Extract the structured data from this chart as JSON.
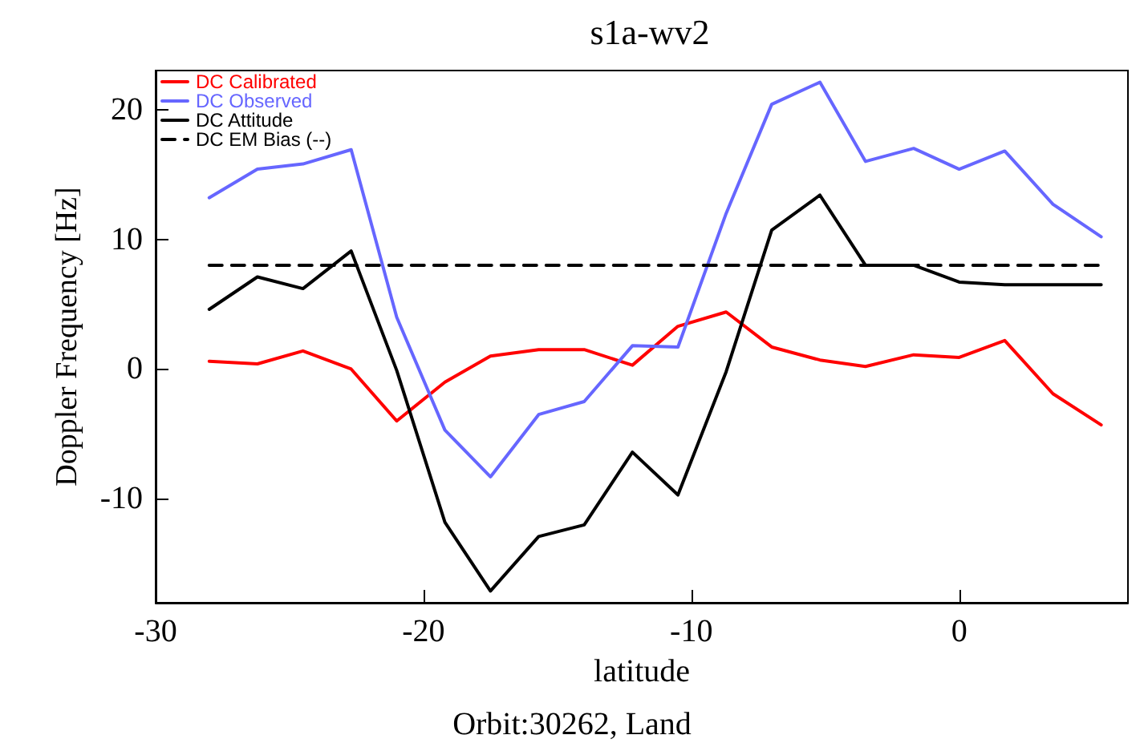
{
  "chart_data": {
    "type": "line",
    "title": "s1a-wv2",
    "xlabel": "latitude",
    "ylabel": "Doppler Frequency [Hz]",
    "annotations": [
      "Orbit:30262, Land"
    ],
    "x": [
      -28.0,
      -26.2,
      -24.5,
      -22.7,
      -21.0,
      -19.2,
      -17.5,
      -15.7,
      -14.0,
      -12.2,
      -10.5,
      -8.7,
      -7.0,
      -5.2,
      -3.5,
      -1.7,
      0.0,
      1.7,
      3.5,
      5.3
    ],
    "series": [
      {
        "name": "DC Calibrated",
        "color": "#ff0000",
        "values": [
          0.6,
          0.4,
          1.4,
          0.0,
          -4.0,
          -1.0,
          1.0,
          1.5,
          1.5,
          0.3,
          3.3,
          4.4,
          1.7,
          0.7,
          0.2,
          1.1,
          0.9,
          2.2,
          -1.9,
          -4.3
        ]
      },
      {
        "name": "DC Observed",
        "color": "#6666ff",
        "values": [
          13.2,
          15.4,
          15.8,
          16.9,
          4.0,
          -4.7,
          -8.3,
          -3.5,
          -2.5,
          1.8,
          1.7,
          12.0,
          20.4,
          22.1,
          16.0,
          17.0,
          15.4,
          16.8,
          12.7,
          10.2
        ]
      },
      {
        "name": "DC Attitude",
        "color": "#000000",
        "values": [
          4.6,
          7.1,
          6.2,
          9.1,
          -0.1,
          -11.8,
          -17.1,
          -12.9,
          -12.0,
          -6.4,
          -9.7,
          -0.2,
          10.7,
          13.4,
          8.0,
          8.0,
          6.7,
          6.5,
          6.5,
          6.5
        ]
      },
      {
        "name": "DC EM Bias (--)",
        "color": "#000000",
        "line_style": "dashed",
        "x": [
          -28.0,
          5.3
        ],
        "values": [
          8.0,
          8.0
        ]
      }
    ],
    "xlim": [
      -30,
      6.3
    ],
    "xticks": [
      -30,
      -20,
      -10,
      0
    ],
    "ylim": [
      -18,
      23
    ],
    "yticks": [
      -10,
      0,
      10,
      20
    ],
    "legend": "top left",
    "marker": "none",
    "line_style": "solid",
    "grid": false
  }
}
